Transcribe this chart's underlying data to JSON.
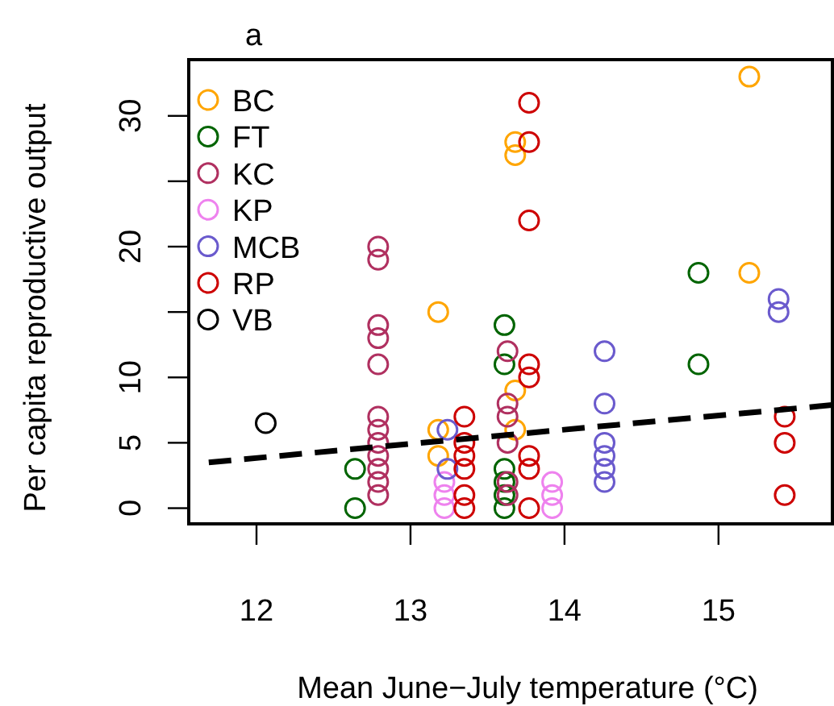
{
  "chart_data": {
    "type": "scatter",
    "title": "a",
    "xlabel": "Mean June−July temperature (°C)",
    "ylabel": "Per capita reproductive output",
    "xlim": [
      11.56,
      15.75
    ],
    "ylim": [
      -1.2,
      34.3
    ],
    "xticks": [
      12,
      13,
      14,
      15
    ],
    "yticks": [
      0,
      5,
      10,
      {
        "value": 15,
        "label": null
      },
      20,
      {
        "value": 25,
        "label": null
      },
      30
    ],
    "marker": "circle",
    "legend": "top left",
    "grid": false,
    "series": [
      {
        "name": "BC",
        "color": "#ffa500",
        "x": [
          13.18,
          13.18,
          13.18,
          13.68,
          13.68,
          13.68,
          13.68,
          15.2,
          15.2
        ],
        "values": [
          15,
          6,
          4,
          28,
          27,
          9,
          6,
          33,
          18
        ]
      },
      {
        "name": "FT",
        "color": "#006400",
        "x": [
          12.64,
          12.64,
          13.61,
          13.61,
          13.61,
          13.61,
          13.61,
          13.61,
          14.87,
          14.87
        ],
        "values": [
          3,
          0,
          14,
          11,
          3,
          2,
          1,
          0,
          18,
          11
        ]
      },
      {
        "name": "KC",
        "color": "#b03060",
        "x": [
          12.79,
          12.79,
          12.79,
          12.79,
          12.79,
          12.79,
          12.79,
          12.79,
          12.79,
          12.79,
          12.79,
          12.79,
          13.63,
          13.63,
          13.63,
          13.63,
          13.63,
          13.63
        ],
        "values": [
          20,
          19,
          14,
          13,
          11,
          7,
          6,
          5,
          4,
          3,
          2,
          1,
          12,
          8,
          7,
          5,
          2,
          1
        ]
      },
      {
        "name": "KP",
        "color": "#ee82ee",
        "x": [
          13.22,
          13.22,
          13.22,
          13.92,
          13.92,
          13.92
        ],
        "values": [
          2,
          1,
          0,
          2,
          1,
          0
        ]
      },
      {
        "name": "MCB",
        "color": "#6a5acd",
        "x": [
          13.24,
          13.24,
          14.26,
          14.26,
          14.26,
          14.26,
          14.26,
          14.26,
          15.39,
          15.39
        ],
        "values": [
          6,
          3,
          12,
          8,
          5,
          4,
          3,
          2,
          16,
          15
        ]
      },
      {
        "name": "RP",
        "color": "#cd0000",
        "x": [
          13.35,
          13.35,
          13.35,
          13.35,
          13.35,
          13.35,
          13.77,
          13.77,
          13.77,
          13.77,
          13.77,
          13.77,
          13.77,
          13.77,
          15.43,
          15.43,
          15.43
        ],
        "values": [
          7,
          5,
          4,
          3,
          1,
          0,
          31,
          28,
          22,
          11,
          10,
          4,
          3,
          0,
          7,
          5,
          1
        ]
      },
      {
        "name": "VB",
        "color": "#000000",
        "x": [
          12.06
        ],
        "values": [
          6.5
        ]
      },
      {
        "type": "line",
        "color": "#000000",
        "line_style": "dashed",
        "marker": "none",
        "x": [
          11.69,
          15.75
        ],
        "values": [
          3.5,
          7.9
        ]
      }
    ]
  }
}
